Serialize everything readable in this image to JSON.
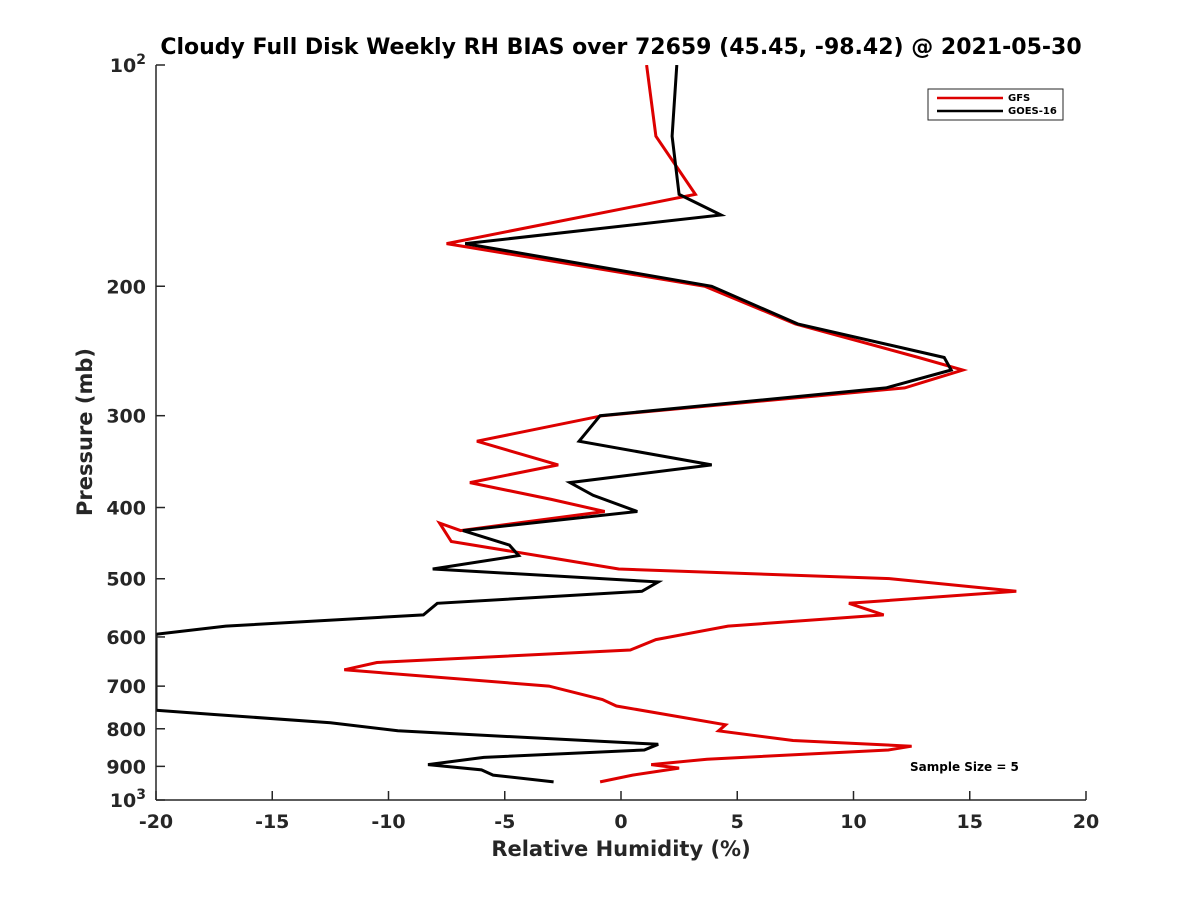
{
  "chart_data": {
    "type": "line",
    "title": "Cloudy Full Disk Weekly RH BIAS over 72659 (45.45, -98.42) @ 2021-05-30",
    "xlabel": "Relative Humidity (%)",
    "ylabel": "Pressure (mb)",
    "xlim": [
      -20,
      20
    ],
    "ylim": [
      100,
      1000
    ],
    "yscale": "log",
    "y_reversed": true,
    "x_ticks": [
      -20,
      -15,
      -10,
      -5,
      0,
      5,
      10,
      15,
      20
    ],
    "y_ticks": [
      {
        "value": 100,
        "label": "10",
        "sup": "2"
      },
      {
        "value": 200,
        "label": "200",
        "sup": ""
      },
      {
        "value": 300,
        "label": "300",
        "sup": ""
      },
      {
        "value": 400,
        "label": "400",
        "sup": ""
      },
      {
        "value": 500,
        "label": "500",
        "sup": ""
      },
      {
        "value": 600,
        "label": "600",
        "sup": ""
      },
      {
        "value": 700,
        "label": "700",
        "sup": ""
      },
      {
        "value": 800,
        "label": "800",
        "sup": ""
      },
      {
        "value": 900,
        "label": "900",
        "sup": ""
      },
      {
        "value": 1000,
        "label": "10",
        "sup": "3"
      }
    ],
    "grid": false,
    "legend_position": "top-right",
    "annotation": "Sample Size = 5",
    "series": [
      {
        "name": "GFS",
        "color": "#dd0000",
        "points": [
          [
            1.1,
            100
          ],
          [
            1.5,
            125
          ],
          [
            3.2,
            150
          ],
          [
            -7.5,
            175
          ],
          [
            3.6,
            200
          ],
          [
            7.5,
            225
          ],
          [
            12.8,
            250
          ],
          [
            14.7,
            260
          ],
          [
            12.2,
            275
          ],
          [
            -0.8,
            300
          ],
          [
            -6.2,
            325
          ],
          [
            -2.7,
            350
          ],
          [
            -6.5,
            370
          ],
          [
            -3.0,
            390
          ],
          [
            -0.7,
            405
          ],
          [
            -6.9,
            430
          ],
          [
            -7.8,
            420
          ],
          [
            -7.3,
            445
          ],
          [
            -2.7,
            470
          ],
          [
            -0.1,
            485
          ],
          [
            11.6,
            500
          ],
          [
            17.0,
            520
          ],
          [
            9.8,
            540
          ],
          [
            11.3,
            560
          ],
          [
            4.6,
            580
          ],
          [
            1.5,
            605
          ],
          [
            0.4,
            625
          ],
          [
            -10.5,
            650
          ],
          [
            -11.9,
            665
          ],
          [
            -3.1,
            700
          ],
          [
            -0.8,
            730
          ],
          [
            -0.2,
            745
          ],
          [
            4.5,
            790
          ],
          [
            4.2,
            805
          ],
          [
            7.4,
            830
          ],
          [
            12.5,
            845
          ],
          [
            11.5,
            855
          ],
          [
            3.7,
            880
          ],
          [
            1.3,
            895
          ],
          [
            2.5,
            905
          ],
          [
            0.5,
            925
          ],
          [
            -0.9,
            945
          ]
        ]
      },
      {
        "name": "GOES-16",
        "color": "#000000",
        "points": [
          [
            2.4,
            100
          ],
          [
            2.2,
            125
          ],
          [
            2.5,
            150
          ],
          [
            4.3,
            160
          ],
          [
            -6.7,
            175
          ],
          [
            3.9,
            200
          ],
          [
            7.6,
            225
          ],
          [
            13.9,
            250
          ],
          [
            14.2,
            260
          ],
          [
            11.4,
            275
          ],
          [
            -0.9,
            300
          ],
          [
            -1.8,
            325
          ],
          [
            3.9,
            350
          ],
          [
            -2.2,
            370
          ],
          [
            -1.2,
            385
          ],
          [
            0.7,
            405
          ],
          [
            -6.8,
            430
          ],
          [
            -4.8,
            450
          ],
          [
            -4.4,
            465
          ],
          [
            -8.1,
            485
          ],
          [
            1.6,
            505
          ],
          [
            0.9,
            520
          ],
          [
            -7.9,
            540
          ],
          [
            -8.5,
            560
          ],
          [
            -17.0,
            580
          ],
          [
            -20.0,
            595
          ],
          [
            -20.0,
            755
          ],
          [
            -17.5,
            765
          ],
          [
            -12.5,
            785
          ],
          [
            -9.6,
            805
          ],
          [
            1.6,
            840
          ],
          [
            1.0,
            855
          ],
          [
            -5.9,
            875
          ],
          [
            -8.3,
            895
          ],
          [
            -6.0,
            910
          ],
          [
            -5.5,
            925
          ],
          [
            -2.9,
            945
          ]
        ]
      }
    ]
  }
}
